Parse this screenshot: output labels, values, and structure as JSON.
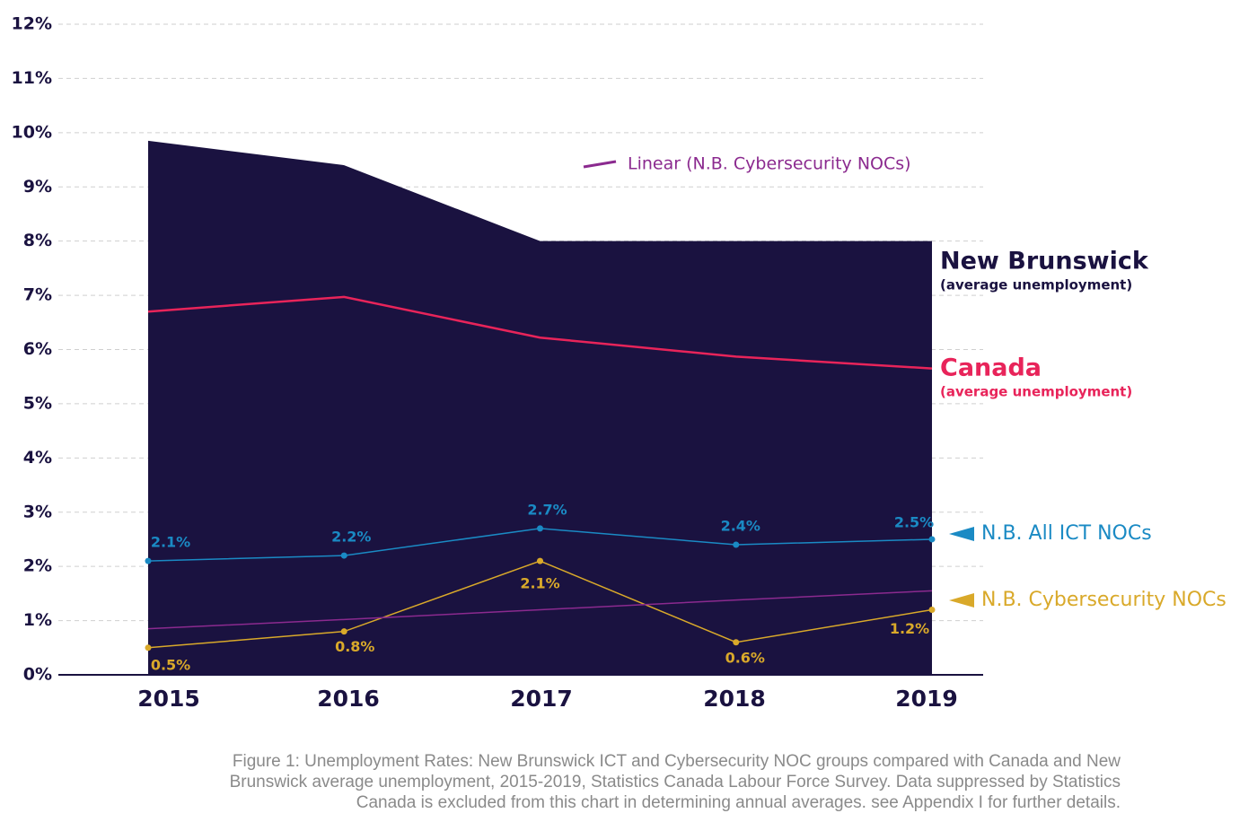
{
  "chart_data": {
    "type": "line",
    "categories": [
      "2015",
      "2016",
      "2017",
      "2018",
      "2019"
    ],
    "ylim": [
      0,
      12
    ],
    "yticks": [
      {
        "value": 0,
        "label": "0%"
      },
      {
        "value": 1,
        "label": "1%"
      },
      {
        "value": 2,
        "label": "2%"
      },
      {
        "value": 3,
        "label": "3%"
      },
      {
        "value": 4,
        "label": "4%"
      },
      {
        "value": 5,
        "label": "5%"
      },
      {
        "value": 6,
        "label": "6%"
      },
      {
        "value": 7,
        "label": "7%"
      },
      {
        "value": 8,
        "label": "8%"
      },
      {
        "value": 9,
        "label": "9%"
      },
      {
        "value": 10,
        "label": "10%"
      },
      {
        "value": 11,
        "label": "11%"
      },
      {
        "value": 12,
        "label": "12%"
      }
    ],
    "grid": true,
    "series": [
      {
        "name": "New Brunswick",
        "sublabel": "(average unemployment)",
        "kind": "area",
        "color": "#1a1240",
        "values": [
          9.85,
          9.4,
          8.0,
          8.0,
          8.0
        ]
      },
      {
        "name": "Canada",
        "sublabel": "(average unemployment)",
        "kind": "line",
        "color": "#e8245a",
        "values": [
          6.7,
          6.97,
          6.22,
          5.87,
          5.65
        ]
      },
      {
        "name": "N.B. All ICT NOCs",
        "kind": "points",
        "color": "#1a8ac4",
        "values": [
          2.1,
          2.2,
          2.7,
          2.4,
          2.5
        ],
        "value_labels": [
          "2.1%",
          "2.2%",
          "2.7%",
          "2.4%",
          "2.5%"
        ]
      },
      {
        "name": "N.B. Cybersecurity NOCs",
        "kind": "points",
        "color": "#d9a92a",
        "values": [
          0.5,
          0.8,
          2.1,
          0.6,
          1.2
        ],
        "value_labels": [
          "0.5%",
          "0.8%",
          "2.1%",
          "0.6%",
          "1.2%"
        ]
      },
      {
        "name": "Linear (N.B. Cybersecurity NOCs)",
        "kind": "trend",
        "color": "#8b2a8f",
        "values": [
          0.85,
          1.02,
          1.2,
          1.38,
          1.55
        ]
      }
    ],
    "caption": [
      "Figure 1: Unemployment Rates: New Brunswick ICT and Cybersecurity NOC groups compared with Canada and New",
      "Brunswick average unemployment, 2015-2019, Statistics Canada Labour Force Survey. Data suppressed by Statistics",
      "Canada is excluded from this chart in determining annual averages. see Appendix I for further details."
    ]
  }
}
